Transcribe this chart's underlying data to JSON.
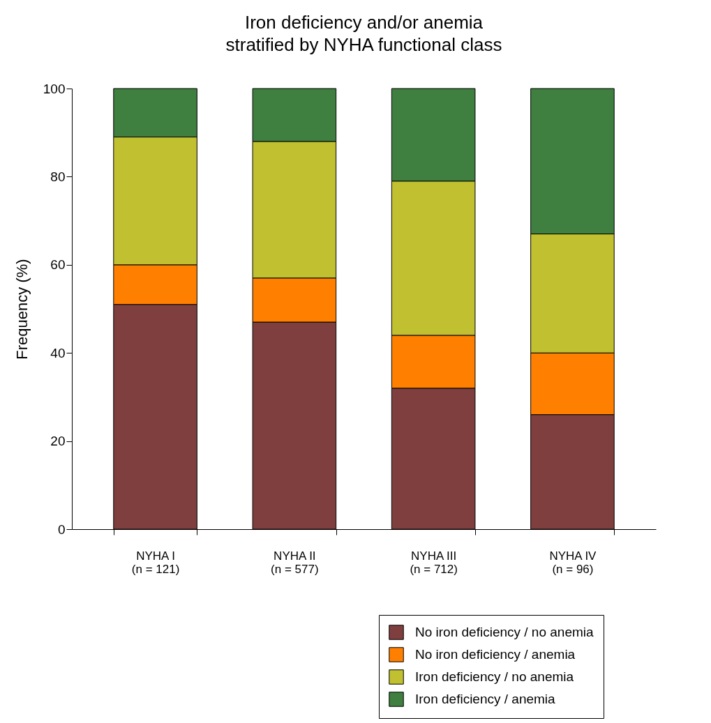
{
  "chart_data": {
    "type": "bar",
    "title": "Iron deficiency and/or anemia\nstratified by NYHA functional class",
    "ylabel": "Frequency (%)",
    "categories": [
      "NYHA I\n(n = 121)",
      "NYHA II\n(n = 577)",
      "NYHA III\n(n = 712)",
      "NYHA IV\n(n = 96)"
    ],
    "stacked": true,
    "series": [
      {
        "name": "No iron deficiency / no anemia",
        "color": "#7f3f3f",
        "values": [
          51,
          47,
          32,
          26
        ]
      },
      {
        "name": "No iron deficiency / anemia",
        "color": "#ff8000",
        "values": [
          9,
          10,
          12,
          14
        ]
      },
      {
        "name": "Iron deficiency / no anemia",
        "color": "#c0c030",
        "values": [
          29,
          31,
          35,
          27
        ]
      },
      {
        "name": "Iron deficiency / anemia",
        "color": "#3f7f3f",
        "values": [
          11,
          12,
          21,
          33
        ]
      }
    ],
    "ylim": [
      0,
      100
    ],
    "yticks": [
      0,
      20,
      40,
      60,
      80,
      100
    ],
    "grid": false,
    "legend": "bottom right"
  }
}
